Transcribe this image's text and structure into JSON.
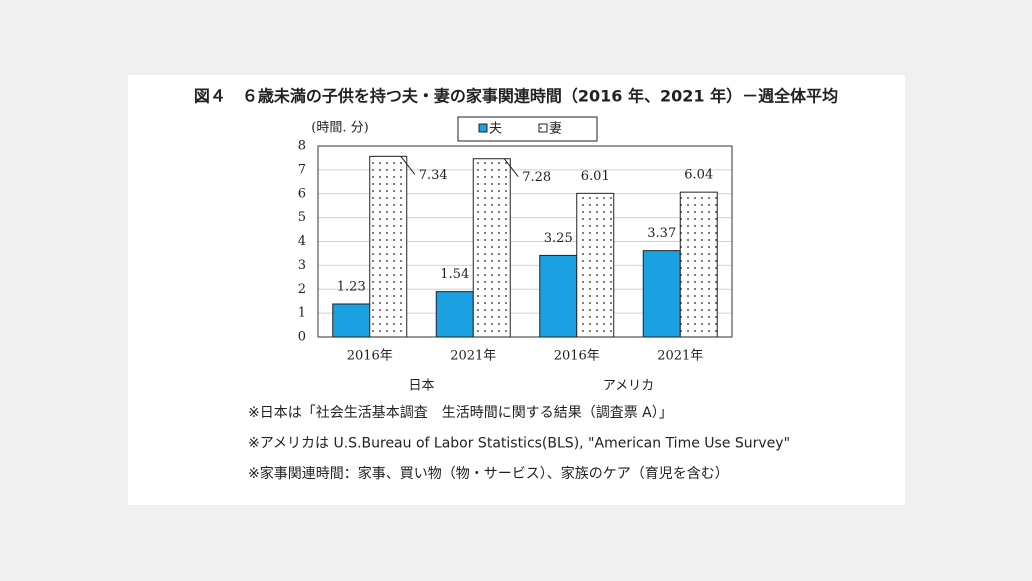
{
  "chart_data": {
    "type": "bar",
    "title": "図４　６歳未満の子供を持つ夫・妻の家事関連時間（2016 年、2021 年）－週全体平均",
    "y_label": "(時間. 分)",
    "categories": [
      "2016年",
      "2021年",
      "2016年",
      "2021年"
    ],
    "category_groups": [
      "日本",
      "アメリカ"
    ],
    "series": [
      {
        "name": "夫",
        "color": "#1ba1e2",
        "values": [
          1.383,
          1.9,
          3.417,
          3.617
        ],
        "value_labels": [
          "1.23",
          "1.54",
          "3.25",
          "3.37"
        ]
      },
      {
        "name": "妻",
        "color": "#ffffff",
        "pattern": "dots",
        "values": [
          7.567,
          7.467,
          6.017,
          6.067
        ],
        "value_labels": [
          "7.34",
          "7.28",
          "6.01",
          "6.04"
        ]
      }
    ],
    "ylim": [
      0,
      8
    ],
    "yticks": [
      0,
      1,
      2,
      3,
      4,
      5,
      6,
      7,
      8
    ],
    "grid": true,
    "legend": "top",
    "notes": [
      "※日本は「社会生活基本調査　生活時間に関する結果（調査票 A）」",
      "※アメリカは U.S.Bureau of Labor Statistics(BLS), \"American Time Use Survey\"",
      "※家事関連時間：家事、買い物（物・サービス）、家族のケア（育児を含む）"
    ]
  }
}
